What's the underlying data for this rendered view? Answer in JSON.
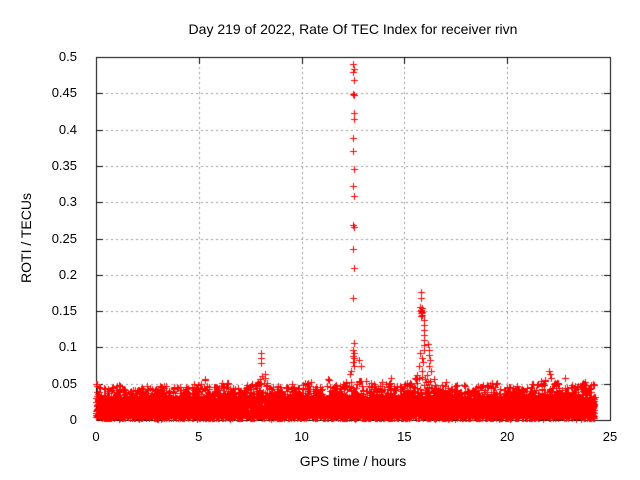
{
  "page": {
    "background": "#ffffff"
  },
  "chart_data": {
    "type": "scatter",
    "title": "Day 219 of 2022, Rate Of TEC Index for receiver rivn",
    "xlabel": "GPS time / hours",
    "ylabel": "ROTI / TECUs",
    "xlim": [
      0,
      25
    ],
    "ylim": [
      0,
      0.5
    ],
    "xticks": [
      0,
      5,
      10,
      15,
      20,
      25
    ],
    "xtick_labels": [
      "0",
      "5",
      "10",
      "15",
      "20",
      "25"
    ],
    "yticks": [
      0,
      0.05,
      0.1,
      0.15,
      0.2,
      0.25,
      0.3,
      0.35,
      0.4,
      0.45,
      0.5
    ],
    "ytick_labels": [
      "0",
      "0.05",
      "0.1",
      "0.15",
      "0.2",
      "0.25",
      "0.3",
      "0.35",
      "0.4",
      "0.45",
      "0.5"
    ],
    "grid": true,
    "legend": "none",
    "marker": "plus",
    "marker_color": "#ff0000",
    "grid_color": "#9a9a9a",
    "axis_color": "#000000",
    "series_name": "ROTI",
    "data_span_hours": [
      0,
      24.25
    ],
    "noise_band": {
      "bin_hours": 0.5,
      "points_per_bin": 170,
      "y_base_range": [
        0.002,
        0.03
      ],
      "tail_start": 0.028,
      "base_fraction": 0.78,
      "seed": 2022,
      "bin_max": [
        0.05,
        0.045,
        0.048,
        0.042,
        0.05,
        0.045,
        0.048,
        0.05,
        0.046,
        0.05,
        0.055,
        0.048,
        0.052,
        0.046,
        0.05,
        0.055,
        0.052,
        0.048,
        0.045,
        0.05,
        0.052,
        0.046,
        0.055,
        0.048,
        0.055,
        0.058,
        0.056,
        0.054,
        0.052,
        0.048,
        0.055,
        0.06,
        0.058,
        0.048,
        0.052,
        0.05,
        0.045,
        0.048,
        0.052,
        0.046,
        0.048,
        0.045,
        0.05,
        0.055,
        0.052,
        0.045,
        0.05,
        0.052,
        0.05
      ]
    },
    "spike_points": [
      [
        8.02,
        0.092
      ],
      [
        8.03,
        0.086
      ],
      [
        8.02,
        0.079
      ],
      [
        8.05,
        0.061
      ],
      [
        8.0,
        0.056
      ],
      [
        8.2,
        0.064
      ],
      [
        8.23,
        0.058
      ],
      [
        12.52,
        0.49
      ],
      [
        12.53,
        0.484
      ],
      [
        12.52,
        0.479
      ],
      [
        12.53,
        0.469
      ],
      [
        12.51,
        0.449
      ],
      [
        12.55,
        0.447
      ],
      [
        12.53,
        0.423
      ],
      [
        12.53,
        0.415
      ],
      [
        12.52,
        0.389
      ],
      [
        12.52,
        0.371
      ],
      [
        12.53,
        0.346
      ],
      [
        12.52,
        0.323
      ],
      [
        12.53,
        0.308
      ],
      [
        12.5,
        0.268
      ],
      [
        12.56,
        0.266
      ],
      [
        12.52,
        0.236
      ],
      [
        12.53,
        0.209
      ],
      [
        12.52,
        0.168
      ],
      [
        12.53,
        0.106
      ],
      [
        12.5,
        0.097
      ],
      [
        12.55,
        0.092
      ],
      [
        12.52,
        0.088
      ],
      [
        12.57,
        0.085
      ],
      [
        12.48,
        0.08
      ],
      [
        12.53,
        0.074
      ],
      [
        12.78,
        0.082
      ],
      [
        12.9,
        0.075
      ],
      [
        12.42,
        0.068
      ],
      [
        12.35,
        0.063
      ],
      [
        15.82,
        0.176
      ],
      [
        15.8,
        0.168
      ],
      [
        15.78,
        0.156
      ],
      [
        15.85,
        0.154
      ],
      [
        15.82,
        0.152
      ],
      [
        15.79,
        0.15
      ],
      [
        15.84,
        0.149
      ],
      [
        15.81,
        0.147
      ],
      [
        15.86,
        0.145
      ],
      [
        15.8,
        0.143
      ],
      [
        15.95,
        0.138
      ],
      [
        15.94,
        0.131
      ],
      [
        15.96,
        0.124
      ],
      [
        15.95,
        0.117
      ],
      [
        15.94,
        0.11
      ],
      [
        15.96,
        0.103
      ],
      [
        15.95,
        0.096
      ],
      [
        15.75,
        0.092
      ],
      [
        15.88,
        0.086
      ],
      [
        15.92,
        0.08
      ],
      [
        15.7,
        0.074
      ],
      [
        15.85,
        0.068
      ],
      [
        15.6,
        0.062
      ],
      [
        16.15,
        0.104
      ],
      [
        16.22,
        0.096
      ],
      [
        16.18,
        0.09
      ],
      [
        16.25,
        0.082
      ],
      [
        16.2,
        0.075
      ],
      [
        16.28,
        0.068
      ],
      [
        16.12,
        0.062
      ],
      [
        22.05,
        0.068
      ],
      [
        22.1,
        0.063
      ],
      [
        22.15,
        0.058
      ],
      [
        21.85,
        0.055
      ],
      [
        22.8,
        0.058
      ],
      [
        23.68,
        0.051
      ],
      [
        0.05,
        0.05
      ],
      [
        5.3,
        0.056
      ],
      [
        11.3,
        0.056
      ],
      [
        14.35,
        0.058
      ],
      [
        24.15,
        0.05
      ]
    ]
  }
}
